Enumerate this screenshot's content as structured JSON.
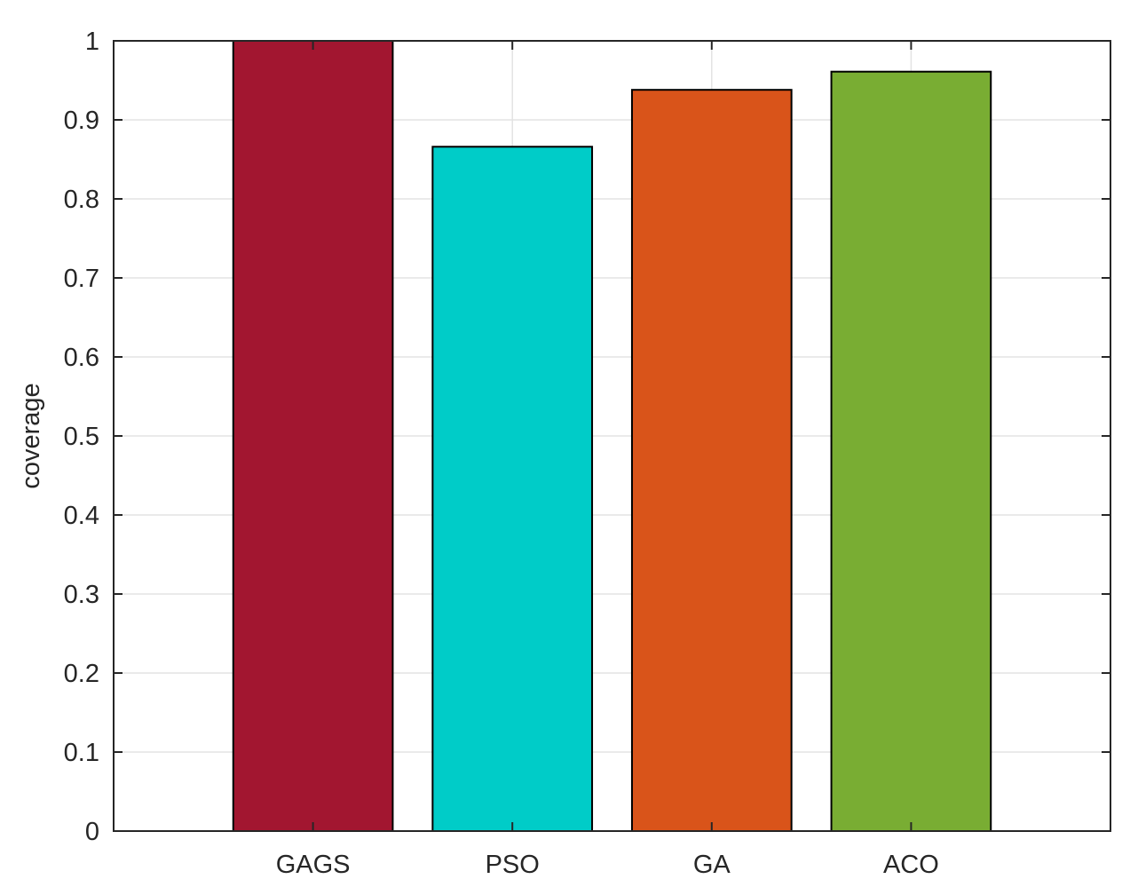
{
  "chart_data": {
    "type": "bar",
    "categories": [
      "GAGS",
      "PSO",
      "GA",
      "ACO"
    ],
    "values": [
      1.0,
      0.866,
      0.938,
      0.961
    ],
    "bar_colors": [
      "#A21630",
      "#00CCC8",
      "#D9541A",
      "#79AD33"
    ],
    "title": "",
    "xlabel": "",
    "ylabel": "coverage",
    "ylim": [
      0,
      1
    ],
    "xlim": [
      0,
      5
    ],
    "yticks": [
      "0",
      "0.1",
      "0.2",
      "0.3",
      "0.4",
      "0.5",
      "0.6",
      "0.7",
      "0.8",
      "0.9",
      "1"
    ],
    "grid": true,
    "legend": "none"
  }
}
